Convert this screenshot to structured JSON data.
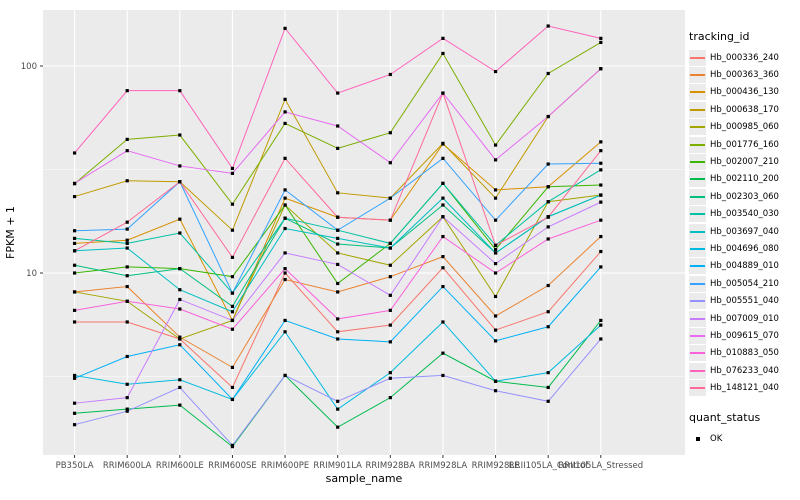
{
  "chart_data": {
    "type": "line",
    "title": "",
    "xlabel": "sample_name",
    "ylabel": "FPKM + 1",
    "y_scale": "log10",
    "ylim": [
      1.3,
      170
    ],
    "grid": true,
    "legend_position": "right",
    "marker": "black-square",
    "y_major_ticks": [
      10,
      100
    ],
    "y_tick_labels": [
      "10",
      "100"
    ],
    "y_minor_ticks": [
      3.1623,
      31.623
    ],
    "categories": [
      "PB350LA",
      "RRIM600LA",
      "RRIM600LE",
      "RRIM600SE",
      "RRIM600PE",
      "RRIM901LA",
      "RRIM928BA",
      "RRIM928LA",
      "RRIM928LE",
      "RRII105LA_Control",
      "RRII105LA_Stressed"
    ],
    "series": [
      {
        "name": "Hb_000336_240",
        "color": "#F8766D",
        "values": [
          5.8,
          5.8,
          4.8,
          2.8,
          10.0,
          5.2,
          5.6,
          10.6,
          5.3,
          6.5,
          12.7
        ]
      },
      {
        "name": "Hb_000363_360",
        "color": "#EA8331",
        "values": [
          8.1,
          8.6,
          4.9,
          3.5,
          9.3,
          8.1,
          9.6,
          12.0,
          6.2,
          8.7,
          15.0
        ]
      },
      {
        "name": "Hb_000436_130",
        "color": "#D89000",
        "values": [
          13.9,
          14.4,
          18.2,
          5.9,
          23.0,
          18.6,
          18.0,
          42.0,
          25.2,
          26.1,
          43.0
        ]
      },
      {
        "name": "Hb_000638_170",
        "color": "#C09B00",
        "values": [
          23.4,
          27.9,
          27.6,
          16.1,
          69.0,
          24.4,
          23.0,
          42.3,
          23.0,
          57.0,
          97.0
        ]
      },
      {
        "name": "Hb_000985_060",
        "color": "#A3A500",
        "values": [
          8.1,
          7.3,
          4.8,
          5.9,
          21.3,
          12.5,
          10.9,
          18.7,
          7.7,
          22.1,
          23.8
        ]
      },
      {
        "name": "Hb_001776_160",
        "color": "#7CAE00",
        "values": [
          27.0,
          44.2,
          46.4,
          21.5,
          52.8,
          40.0,
          47.6,
          115.0,
          41.5,
          92.0,
          130.0
        ]
      },
      {
        "name": "Hb_002007_210",
        "color": "#39B600",
        "values": [
          10.0,
          10.7,
          10.5,
          9.6,
          21.3,
          8.9,
          13.9,
          27.1,
          13.0,
          26.1,
          26.6
        ]
      },
      {
        "name": "Hb_002110_200",
        "color": "#00BB4E",
        "values": [
          2.1,
          2.2,
          2.3,
          1.45,
          3.2,
          1.8,
          2.5,
          4.1,
          3.0,
          2.8,
          5.9
        ]
      },
      {
        "name": "Hb_002303_060",
        "color": "#00BF7D",
        "values": [
          10.9,
          9.7,
          10.5,
          6.9,
          18.4,
          13.8,
          13.2,
          21.3,
          12.5,
          18.7,
          23.8
        ]
      },
      {
        "name": "Hb_003540_030",
        "color": "#00C1A3",
        "values": [
          14.7,
          13.9,
          15.6,
          8.0,
          18.4,
          16.1,
          13.9,
          27.1,
          13.6,
          22.1,
          31.5
        ]
      },
      {
        "name": "Hb_003697_040",
        "color": "#00BFC4",
        "values": [
          12.8,
          13.2,
          8.3,
          6.5,
          16.4,
          14.7,
          13.2,
          23.0,
          12.5,
          18.7,
          23.8
        ]
      },
      {
        "name": "Hb_004696_080",
        "color": "#00BAE0",
        "values": [
          3.2,
          2.9,
          3.05,
          2.45,
          5.2,
          2.2,
          3.3,
          5.8,
          3.0,
          3.3,
          5.6
        ]
      },
      {
        "name": "Hb_004889_010",
        "color": "#00B0F6",
        "values": [
          3.1,
          3.95,
          4.5,
          2.45,
          5.9,
          4.8,
          4.65,
          8.6,
          4.7,
          5.5,
          10.7
        ]
      },
      {
        "name": "Hb_005054_210",
        "color": "#35A2FF",
        "values": [
          16.0,
          16.3,
          27.6,
          8.0,
          25.2,
          16.1,
          23.0,
          35.8,
          18.0,
          33.6,
          33.9
        ]
      },
      {
        "name": "Hb_005551_040",
        "color": "#9590FF",
        "values": [
          1.85,
          2.15,
          2.8,
          1.47,
          3.2,
          2.4,
          3.1,
          3.2,
          2.7,
          2.4,
          4.8
        ]
      },
      {
        "name": "Hb_007009_010",
        "color": "#C77CFF",
        "values": [
          2.35,
          2.5,
          7.45,
          5.9,
          12.5,
          11.0,
          7.8,
          18.7,
          11.1,
          16.7,
          22.0
        ]
      },
      {
        "name": "Hb_009615_070",
        "color": "#E76BF3",
        "values": [
          27.1,
          39.0,
          32.9,
          30.3,
          60.0,
          51.3,
          34.1,
          74.0,
          35.2,
          57.0,
          97.0
        ]
      },
      {
        "name": "Hb_010883_050",
        "color": "#FA62DB",
        "values": [
          6.6,
          7.3,
          6.7,
          5.35,
          10.5,
          6.0,
          6.6,
          15.0,
          10.0,
          14.6,
          18.0
        ]
      },
      {
        "name": "Hb_076233_040",
        "color": "#FF62BC",
        "values": [
          38.0,
          76.0,
          76.0,
          32.0,
          152.0,
          74.0,
          91.0,
          136.0,
          94.0,
          156.0,
          136.0
        ]
      },
      {
        "name": "Hb_148121_040",
        "color": "#FF6A98",
        "values": [
          12.8,
          17.6,
          27.6,
          11.9,
          35.8,
          18.6,
          18.0,
          74.0,
          13.6,
          18.6,
          39.0
        ]
      }
    ]
  },
  "legend": {
    "tracking_title": "tracking_id",
    "quant_title": "quant_status",
    "quant_items": [
      {
        "label": "OK"
      }
    ]
  },
  "colors": {
    "panel_background": "#EBEBEB",
    "grid_line": "#FFFFFF",
    "tick_label": "#4D4D4D",
    "axis_title": "#000000",
    "marker": "#000000",
    "figure_background": "#FFFFFF"
  }
}
